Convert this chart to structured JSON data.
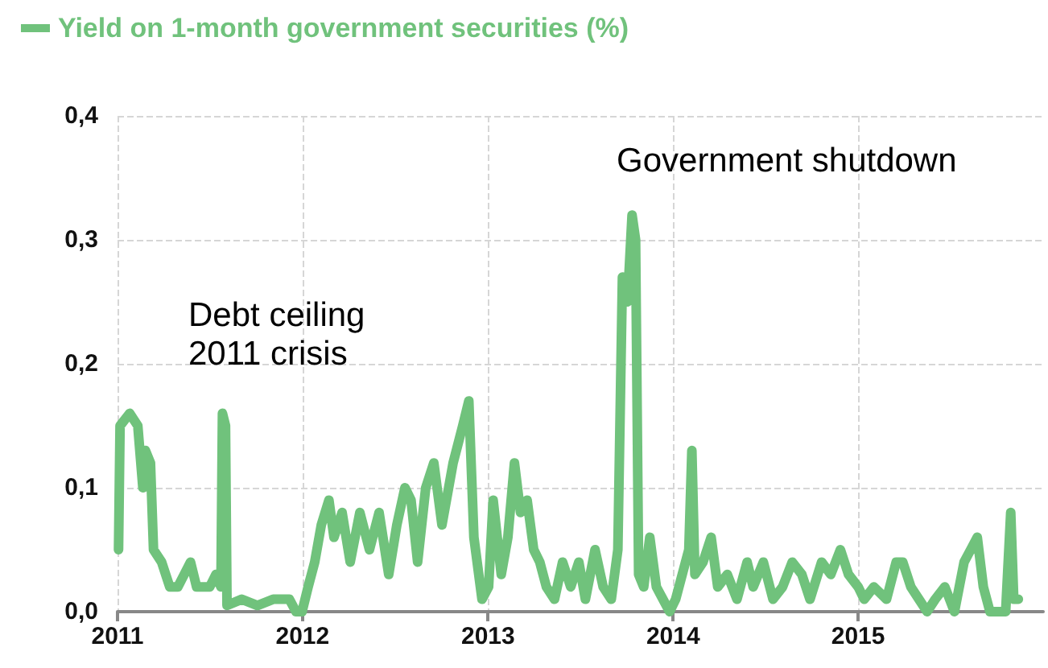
{
  "chart_data": {
    "type": "line",
    "legend": "top left",
    "grid": true,
    "line_style": "solid",
    "marker": "none",
    "xlim": [
      "2011",
      "2016"
    ],
    "xticks": [
      "2011",
      "2012",
      "2013",
      "2014",
      "2015"
    ],
    "ylim": [
      0,
      0.4
    ],
    "yticks": [
      {
        "value": 0,
        "label": "0,0"
      },
      {
        "value": 0.1,
        "label": "0,1"
      },
      {
        "value": 0.2,
        "label": "0,2"
      },
      {
        "value": 0.3,
        "label": "0,3"
      },
      {
        "value": 0.4,
        "label": "0,4"
      }
    ],
    "annotations": [
      "Government shutdown",
      "Debt ceiling\n2011 crisis"
    ],
    "x": [
      "2011-01-03",
      "2011-01-06",
      "2011-01-25",
      "2011-02-10",
      "2011-02-20",
      "2011-02-25",
      "2011-03-07",
      "2011-03-13",
      "2011-03-29",
      "2011-04-14",
      "2011-04-30",
      "2011-05-25",
      "2011-06-06",
      "2011-07-02",
      "2011-07-14",
      "2011-07-24",
      "2011-07-27",
      "2011-08-02",
      "2011-08-05",
      "2011-09-03",
      "2011-10-04",
      "2011-11-04",
      "2011-12-06",
      "2011-12-19",
      "2011-12-31",
      "2012-01-12",
      "2012-01-25",
      "2012-02-07",
      "2012-02-22",
      "2012-03-03",
      "2012-03-19",
      "2012-04-04",
      "2012-04-23",
      "2012-05-12",
      "2012-05-31",
      "2012-06-19",
      "2012-07-05",
      "2012-07-21",
      "2012-08-02",
      "2012-08-15",
      "2012-08-31",
      "2012-09-16",
      "2012-10-02",
      "2012-10-24",
      "2012-11-12",
      "2012-11-24",
      "2012-12-04",
      "2012-12-20",
      "2013-01-02",
      "2013-01-11",
      "2013-01-27",
      "2013-02-09",
      "2013-02-22",
      "2013-03-06",
      "2013-03-19",
      "2013-04-01",
      "2013-04-13",
      "2013-04-26",
      "2013-05-12",
      "2013-05-28",
      "2013-06-13",
      "2013-06-29",
      "2013-07-12",
      "2013-07-31",
      "2013-08-16",
      "2013-09-01",
      "2013-09-14",
      "2013-09-23",
      "2013-10-03",
      "2013-10-12",
      "2013-10-19",
      "2013-10-25",
      "2013-11-04",
      "2013-11-16",
      "2013-11-29",
      "2013-12-12",
      "2013-12-25",
      "2014-01-06",
      "2014-01-19",
      "2014-02-01",
      "2014-02-07",
      "2014-02-13",
      "2014-03-01",
      "2014-03-17",
      "2014-03-30",
      "2014-04-18",
      "2014-05-07",
      "2014-05-27",
      "2014-06-08",
      "2014-06-28",
      "2014-07-17",
      "2014-08-05",
      "2014-08-24",
      "2014-09-12",
      "2014-09-28",
      "2014-10-21",
      "2014-11-08",
      "2014-11-27",
      "2014-12-13",
      "2015-01-01",
      "2015-01-13",
      "2015-02-01",
      "2015-02-26",
      "2015-03-17",
      "2015-03-30",
      "2015-04-15",
      "2015-05-01",
      "2015-05-17",
      "2015-06-02",
      "2015-06-21",
      "2015-07-10",
      "2015-07-29",
      "2015-08-11",
      "2015-08-24",
      "2015-09-05",
      "2015-09-18",
      "2015-10-07",
      "2015-10-19",
      "2015-10-29",
      "2015-11-04",
      "2015-11-13"
    ],
    "series": [
      {
        "name": "Yield on 1-month government securities (%)",
        "color": "#70c27c",
        "values": [
          0.05,
          0.15,
          0.16,
          0.15,
          0.1,
          0.13,
          0.12,
          0.05,
          0.04,
          0.02,
          0.02,
          0.04,
          0.02,
          0.02,
          0.03,
          0.02,
          0.16,
          0.15,
          0.005,
          0.01,
          0.005,
          0.01,
          0.01,
          0,
          0,
          0.02,
          0.04,
          0.07,
          0.09,
          0.06,
          0.08,
          0.04,
          0.08,
          0.05,
          0.08,
          0.03,
          0.07,
          0.1,
          0.09,
          0.04,
          0.1,
          0.12,
          0.07,
          0.12,
          0.15,
          0.17,
          0.06,
          0.01,
          0.02,
          0.09,
          0.03,
          0.06,
          0.12,
          0.08,
          0.09,
          0.05,
          0.04,
          0.02,
          0.01,
          0.04,
          0.02,
          0.04,
          0.01,
          0.05,
          0.02,
          0.01,
          0.05,
          0.27,
          0.25,
          0.32,
          0.3,
          0.03,
          0.02,
          0.06,
          0.02,
          0.01,
          0,
          0.01,
          0.03,
          0.05,
          0.13,
          0.03,
          0.04,
          0.06,
          0.02,
          0.03,
          0.01,
          0.04,
          0.02,
          0.04,
          0.01,
          0.02,
          0.04,
          0.03,
          0.01,
          0.04,
          0.03,
          0.05,
          0.03,
          0.02,
          0.01,
          0.02,
          0.01,
          0.04,
          0.04,
          0.02,
          0.01,
          0,
          0.01,
          0.02,
          0,
          0.04,
          0.05,
          0.06,
          0.02,
          0,
          0,
          0,
          0.08,
          0.01,
          0.01
        ]
      }
    ]
  }
}
